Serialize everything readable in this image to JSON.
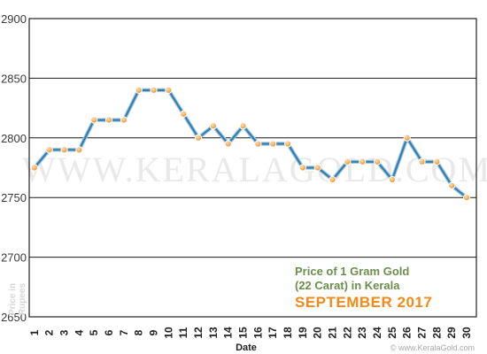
{
  "chart_data": {
    "type": "line",
    "xlabel": "Date",
    "ylabel": "Price in Rupees",
    "ylim": [
      2650,
      2900
    ],
    "yticks": [
      2650,
      2700,
      2750,
      2800,
      2850,
      2900
    ],
    "grid": true,
    "annotations": {
      "line1": "Price of 1 Gram Gold",
      "line2": "(22 Carat) in Kerala",
      "period": "SEPTEMBER 2017"
    },
    "watermark": "WWW.KERALAGOLD.COM",
    "credit": "© www.KeralaGold.com",
    "line_color": "#2e7fb3",
    "marker_color": "#f5a040",
    "x": [
      1,
      2,
      3,
      4,
      5,
      6,
      7,
      8,
      9,
      10,
      11,
      12,
      13,
      14,
      15,
      16,
      17,
      18,
      19,
      20,
      21,
      22,
      23,
      24,
      25,
      26,
      27,
      28,
      29,
      30
    ],
    "values": [
      2775,
      2790,
      2790,
      2790,
      2815,
      2815,
      2815,
      2840,
      2840,
      2840,
      2820,
      2800,
      2810,
      2795,
      2810,
      2795,
      2795,
      2795,
      2775,
      2775,
      2765,
      2780,
      2780,
      2780,
      2765,
      2800,
      2780,
      2780,
      2760,
      2750
    ]
  }
}
